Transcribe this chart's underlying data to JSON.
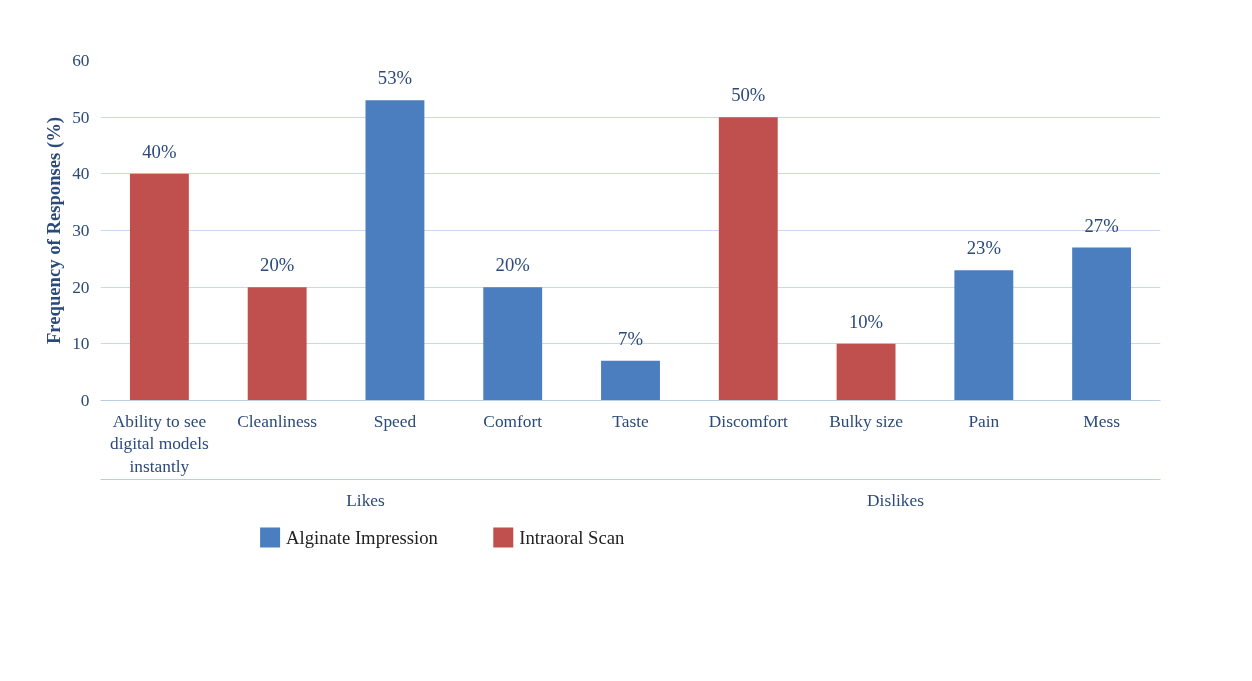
{
  "chart_data": {
    "type": "bar",
    "ylabel": "Frequency of Responses (%)",
    "categories": [
      "Ability to see digital models instantly",
      "Cleanliness",
      "Speed",
      "Comfort",
      "Taste",
      "Discomfort",
      "Bulky size",
      "Pain",
      "Mess"
    ],
    "series": [
      {
        "name": "Alginate Impression",
        "color": "#4a7ebf",
        "values": [
          null,
          null,
          53,
          20,
          7,
          null,
          null,
          23,
          27
        ],
        "value_labels": [
          null,
          null,
          "53%",
          "20%",
          "7%",
          null,
          null,
          "23%",
          "27%"
        ]
      },
      {
        "name": "Intraoral Scan",
        "color": "#c0504d",
        "values": [
          40,
          20,
          null,
          null,
          null,
          50,
          10,
          null,
          null
        ],
        "value_labels": [
          "40%",
          "20%",
          null,
          null,
          null,
          "50%",
          "10%",
          null,
          null
        ]
      }
    ],
    "annotations": [
      "Likes",
      "Dislikes"
    ],
    "ylim": [
      0,
      60
    ],
    "yticks": [
      0,
      10,
      20,
      30,
      40,
      50,
      60
    ],
    "grid": "y",
    "legend": "bottom left"
  }
}
